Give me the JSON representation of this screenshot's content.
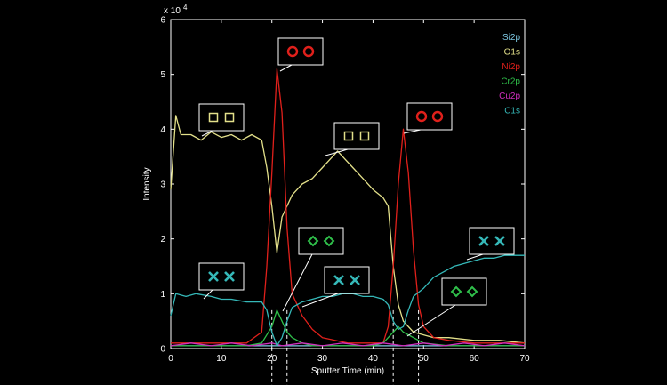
{
  "chart_data": {
    "type": "line",
    "title": "",
    "xlabel": "Sputter Time (min)",
    "ylabel": "Intensity",
    "y_multiplier_label": "x 10",
    "y_multiplier_exp": "4",
    "xlim": [
      0,
      70
    ],
    "ylim": [
      0,
      6
    ],
    "x_ticks": [
      0,
      10,
      20,
      30,
      40,
      50,
      60,
      70
    ],
    "y_ticks": [
      0,
      1,
      2,
      3,
      4,
      5,
      6
    ],
    "grid": false,
    "legend_position": "top-right",
    "reference_lines_x": [
      20,
      23,
      44,
      49
    ],
    "series": [
      {
        "name": "Si2p",
        "color": "#7ec8e3",
        "x": [
          0,
          5,
          10,
          15,
          18,
          20,
          22,
          25,
          30,
          35,
          40,
          45,
          50,
          55,
          60,
          65,
          70
        ],
        "values": [
          0.05,
          0.05,
          0.05,
          0.05,
          0.05,
          0.05,
          0.05,
          0.05,
          0.05,
          0.05,
          0.05,
          0.05,
          0.05,
          0.05,
          0.05,
          0.05,
          0.05
        ]
      },
      {
        "name": "O1s",
        "color": "#e3e08a",
        "x": [
          0,
          1,
          2,
          4,
          6,
          8,
          10,
          12,
          14,
          16,
          18,
          19,
          20,
          21,
          22,
          24,
          26,
          28,
          30,
          32,
          33,
          34,
          36,
          38,
          40,
          42,
          43,
          44,
          45,
          46,
          48,
          50,
          52,
          55,
          60,
          65,
          70
        ],
        "values": [
          2.9,
          4.25,
          3.9,
          3.9,
          3.8,
          3.95,
          3.85,
          3.9,
          3.8,
          3.9,
          3.8,
          3.3,
          2.6,
          1.75,
          2.4,
          2.8,
          3.0,
          3.1,
          3.3,
          3.5,
          3.6,
          3.5,
          3.3,
          3.1,
          2.9,
          2.75,
          2.6,
          1.5,
          0.8,
          0.5,
          0.3,
          0.25,
          0.2,
          0.2,
          0.15,
          0.15,
          0.1
        ]
      },
      {
        "name": "Ni2p",
        "color": "#e0201b",
        "x": [
          0,
          5,
          10,
          15,
          18,
          19,
          20,
          21,
          22,
          23,
          24,
          26,
          28,
          30,
          35,
          40,
          42,
          43,
          44,
          45,
          46,
          47,
          48,
          49,
          50,
          52,
          55,
          60,
          65,
          70
        ],
        "values": [
          0.1,
          0.1,
          0.1,
          0.1,
          0.3,
          1.5,
          3.2,
          5.1,
          4.3,
          2.2,
          1.0,
          0.6,
          0.35,
          0.2,
          0.1,
          0.1,
          0.1,
          0.4,
          1.5,
          3.0,
          4.0,
          3.2,
          1.8,
          0.8,
          0.4,
          0.2,
          0.15,
          0.1,
          0.1,
          0.1
        ]
      },
      {
        "name": "Cr2p",
        "color": "#2fbf4a",
        "x": [
          0,
          5,
          10,
          15,
          18,
          20,
          21,
          22,
          23,
          24,
          26,
          28,
          30,
          35,
          40,
          42,
          44,
          45,
          46,
          48,
          50,
          55,
          60,
          65,
          70
        ],
        "values": [
          0.05,
          0.05,
          0.05,
          0.05,
          0.1,
          0.4,
          0.7,
          0.5,
          0.3,
          0.2,
          0.1,
          0.05,
          0.05,
          0.05,
          0.05,
          0.1,
          0.3,
          0.4,
          0.3,
          0.2,
          0.1,
          0.05,
          0.05,
          0.05,
          0.05
        ]
      },
      {
        "name": "Cu2p",
        "color": "#d12fbf",
        "x": [
          0,
          4,
          8,
          12,
          16,
          20,
          22,
          26,
          30,
          34,
          38,
          42,
          46,
          50,
          54,
          58,
          62,
          66,
          70
        ],
        "values": [
          0.05,
          0.1,
          0.05,
          0.1,
          0.05,
          0.1,
          0.05,
          0.1,
          0.05,
          0.1,
          0.05,
          0.1,
          0.05,
          0.1,
          0.05,
          0.1,
          0.05,
          0.1,
          0.05
        ]
      },
      {
        "name": "C1s",
        "color": "#35b8b8",
        "x": [
          0,
          1,
          3,
          5,
          8,
          10,
          12,
          15,
          18,
          19,
          20,
          21,
          22,
          23,
          24,
          26,
          28,
          30,
          32,
          34,
          36,
          38,
          40,
          42,
          43,
          44,
          45,
          46,
          47,
          48,
          50,
          52,
          54,
          56,
          58,
          60,
          62,
          64,
          66,
          68,
          70
        ],
        "values": [
          0.6,
          1.0,
          0.95,
          1.0,
          0.95,
          0.9,
          0.9,
          0.85,
          0.85,
          0.7,
          0.3,
          0.05,
          0.2,
          0.5,
          0.75,
          0.85,
          0.9,
          0.95,
          0.95,
          1.0,
          1.0,
          0.95,
          0.95,
          0.9,
          0.8,
          0.5,
          0.35,
          0.4,
          0.7,
          0.95,
          1.1,
          1.3,
          1.4,
          1.5,
          1.55,
          1.6,
          1.65,
          1.65,
          1.7,
          1.7,
          1.7
        ]
      }
    ]
  },
  "annotations": [
    {
      "id": "bubble-ni-1",
      "symbol": "○ ○",
      "color": "#e0201b",
      "shape": "circle"
    },
    {
      "id": "bubble-ni-2",
      "symbol": "○ ○",
      "color": "#e0201b",
      "shape": "circle"
    },
    {
      "id": "bubble-o-1",
      "symbol": "□ □",
      "color": "#e3e08a",
      "shape": "square"
    },
    {
      "id": "bubble-o-2",
      "symbol": "□ □",
      "color": "#e3e08a",
      "shape": "square"
    },
    {
      "id": "bubble-cr-1",
      "symbol": "◇ ◇",
      "color": "#2fbf4a",
      "shape": "diamond"
    },
    {
      "id": "bubble-cr-2",
      "symbol": "◇ ◇",
      "color": "#2fbf4a",
      "shape": "diamond"
    },
    {
      "id": "bubble-c-1",
      "symbol": "X X",
      "color": "#35b8b8",
      "shape": "x"
    },
    {
      "id": "bubble-c-2",
      "symbol": "X X",
      "color": "#35b8b8",
      "shape": "x"
    },
    {
      "id": "bubble-c-3",
      "symbol": "X X",
      "color": "#35b8b8",
      "shape": "x"
    }
  ]
}
